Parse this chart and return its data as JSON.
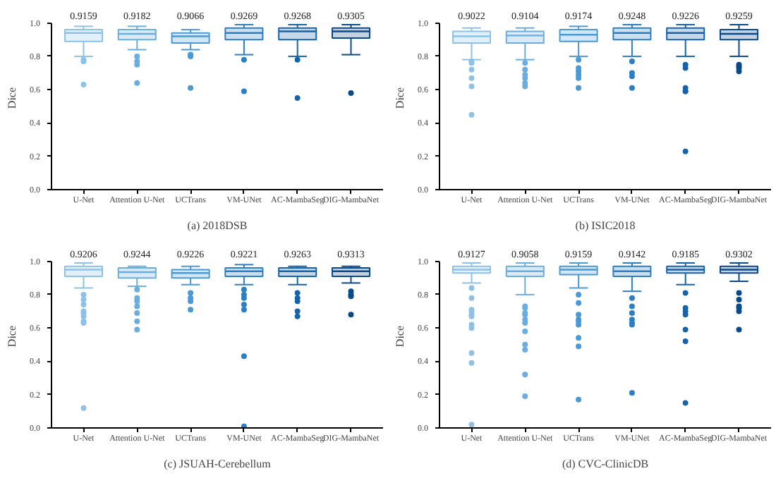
{
  "chart_data": [
    {
      "type": "box",
      "title": "(a) 2018DSB",
      "ylabel": "Dice",
      "categories": [
        "U-Net",
        "Attention U-Net",
        "UCTrans",
        "VM-UNet",
        "AC-MambaSeg",
        "DIG-MambaNet"
      ],
      "colors": [
        "#8cc2e8",
        "#6aaee0",
        "#4a9ad6",
        "#2c7fc4",
        "#1663aa",
        "#0b4a8a"
      ],
      "ylim": [
        0,
        1
      ],
      "yticks": [
        {
          "value": 0,
          "label": "0.0"
        },
        0.2,
        0.4,
        0.6,
        0.8,
        {
          "value": 1,
          "label": "1.0"
        }
      ],
      "grid": false,
      "boxes": [
        {
          "low": 0.8,
          "q1": 0.89,
          "median": 0.94,
          "q3": 0.96,
          "high": 0.98,
          "outliers": [
            0.78,
            0.77,
            0.63
          ]
        },
        {
          "low": 0.84,
          "q1": 0.9,
          "median": 0.935,
          "q3": 0.96,
          "high": 0.98,
          "outliers": [
            0.8,
            0.77,
            0.75,
            0.64
          ]
        },
        {
          "low": 0.84,
          "q1": 0.88,
          "median": 0.92,
          "q3": 0.94,
          "high": 0.96,
          "outliers": [
            0.81,
            0.8,
            0.61
          ]
        },
        {
          "low": 0.81,
          "q1": 0.9,
          "median": 0.94,
          "q3": 0.97,
          "high": 0.99,
          "outliers": [
            0.78,
            0.59
          ]
        },
        {
          "low": 0.8,
          "q1": 0.9,
          "median": 0.95,
          "q3": 0.97,
          "high": 0.99,
          "outliers": [
            0.78,
            0.55
          ]
        },
        {
          "low": 0.81,
          "q1": 0.91,
          "median": 0.95,
          "q3": 0.97,
          "high": 0.99,
          "outliers": [
            0.58
          ]
        }
      ],
      "annotations": [
        "0.9159",
        "0.9182",
        "0.9066",
        "0.9269",
        "0.9268",
        "0.9305"
      ]
    },
    {
      "type": "box",
      "title": "(b) ISIC2018",
      "ylabel": "Dice",
      "categories": [
        "U-Net",
        "Attention U-Net",
        "UCTrans",
        "VM-UNet",
        "AC-MambaSeg",
        "DIG-MambaNet"
      ],
      "colors": [
        "#8cc2e8",
        "#6aaee0",
        "#4a9ad6",
        "#2c7fc4",
        "#1663aa",
        "#0b4a8a"
      ],
      "ylim": [
        0,
        1
      ],
      "yticks": [
        {
          "value": 0,
          "label": "0.0"
        },
        0.2,
        0.4,
        0.6,
        0.8,
        {
          "value": 1,
          "label": "1.0"
        }
      ],
      "grid": false,
      "boxes": [
        {
          "low": 0.78,
          "q1": 0.88,
          "median": 0.92,
          "q3": 0.95,
          "high": 0.97,
          "outliers": [
            0.77,
            0.76,
            0.72,
            0.67,
            0.62,
            0.45
          ]
        },
        {
          "low": 0.78,
          "q1": 0.88,
          "median": 0.925,
          "q3": 0.95,
          "high": 0.97,
          "outliers": [
            0.76,
            0.72,
            0.69,
            0.67,
            0.64,
            0.62
          ]
        },
        {
          "low": 0.8,
          "q1": 0.89,
          "median": 0.93,
          "q3": 0.96,
          "high": 0.98,
          "outliers": [
            0.78,
            0.73,
            0.71,
            0.69,
            0.67,
            0.61
          ]
        },
        {
          "low": 0.8,
          "q1": 0.9,
          "median": 0.94,
          "q3": 0.97,
          "high": 0.99,
          "outliers": [
            0.77,
            0.7,
            0.68,
            0.61
          ]
        },
        {
          "low": 0.8,
          "q1": 0.9,
          "median": 0.94,
          "q3": 0.97,
          "high": 0.99,
          "outliers": [
            0.75,
            0.73,
            0.61,
            0.59,
            0.59,
            0.23
          ]
        },
        {
          "low": 0.8,
          "q1": 0.9,
          "median": 0.935,
          "q3": 0.96,
          "high": 0.99,
          "outliers": [
            0.75,
            0.74,
            0.73,
            0.71
          ]
        }
      ],
      "annotations": [
        "0.9022",
        "0.9104",
        "0.9174",
        "0.9248",
        "0.9226",
        "0.9259"
      ]
    },
    {
      "type": "box",
      "title": "(c) JSUAH-Cerebellum",
      "ylabel": "Dice",
      "categories": [
        "U-Net",
        "Attention U-Net",
        "UCTrans",
        "VM-UNet",
        "AC-MambaSeg",
        "DIG-MambaNet"
      ],
      "colors": [
        "#8cc2e8",
        "#6aaee0",
        "#4a9ad6",
        "#2c7fc4",
        "#1663aa",
        "#0b4a8a"
      ],
      "ylim": [
        0,
        1
      ],
      "yticks": [
        {
          "value": 0,
          "label": "0.0"
        },
        0.2,
        0.4,
        0.6,
        0.8,
        {
          "value": 1,
          "label": "1.0"
        }
      ],
      "grid": false,
      "boxes": [
        {
          "low": 0.84,
          "q1": 0.91,
          "median": 0.95,
          "q3": 0.97,
          "high": 0.99,
          "outliers": [
            0.8,
            0.77,
            0.74,
            0.7,
            0.69,
            0.67,
            0.64,
            0.63,
            0.12
          ]
        },
        {
          "low": 0.85,
          "q1": 0.9,
          "median": 0.935,
          "q3": 0.96,
          "high": 0.97,
          "outliers": [
            0.83,
            0.78,
            0.76,
            0.73,
            0.69,
            0.64,
            0.59
          ]
        },
        {
          "low": 0.86,
          "q1": 0.9,
          "median": 0.93,
          "q3": 0.95,
          "high": 0.97,
          "outliers": [
            0.81,
            0.78,
            0.76,
            0.71
          ]
        },
        {
          "low": 0.86,
          "q1": 0.91,
          "median": 0.94,
          "q3": 0.96,
          "high": 0.98,
          "outliers": [
            0.83,
            0.8,
            0.78,
            0.74,
            0.71,
            0.43,
            0.01
          ]
        },
        {
          "low": 0.86,
          "q1": 0.91,
          "median": 0.94,
          "q3": 0.96,
          "high": 0.97,
          "outliers": [
            0.81,
            0.78,
            0.76,
            0.7,
            0.67
          ]
        },
        {
          "low": 0.87,
          "q1": 0.91,
          "median": 0.94,
          "q3": 0.96,
          "high": 0.97,
          "outliers": [
            0.82,
            0.8,
            0.79,
            0.68
          ]
        }
      ],
      "annotations": [
        "0.9206",
        "0.9244",
        "0.9226",
        "0.9221",
        "0.9263",
        "0.9313"
      ]
    },
    {
      "type": "box",
      "title": "(d) CVC-ClinicDB",
      "ylabel": "Dice",
      "categories": [
        "U-Net",
        "Attention U-Net",
        "UCTrans",
        "VM-UNet",
        "AC-MambaSeg",
        "DIG-MambaNet"
      ],
      "colors": [
        "#8cc2e8",
        "#6aaee0",
        "#4a9ad6",
        "#2c7fc4",
        "#1663aa",
        "#0b4a8a"
      ],
      "ylim": [
        0,
        1
      ],
      "yticks": [
        {
          "value": 0,
          "label": "0.0"
        },
        0.2,
        0.4,
        0.6,
        0.8,
        {
          "value": 1,
          "label": "1.0"
        }
      ],
      "grid": false,
      "boxes": [
        {
          "low": 0.87,
          "q1": 0.93,
          "median": 0.95,
          "q3": 0.97,
          "high": 0.99,
          "outliers": [
            0.84,
            0.78,
            0.71,
            0.7,
            0.68,
            0.67,
            0.62,
            0.6,
            0.45,
            0.39,
            0.02
          ]
        },
        {
          "low": 0.8,
          "q1": 0.91,
          "median": 0.94,
          "q3": 0.97,
          "high": 0.99,
          "outliers": [
            0.73,
            0.72,
            0.69,
            0.68,
            0.65,
            0.63,
            0.58,
            0.5,
            0.47,
            0.32,
            0.19
          ]
        },
        {
          "low": 0.84,
          "q1": 0.92,
          "median": 0.95,
          "q3": 0.97,
          "high": 0.99,
          "outliers": [
            0.8,
            0.75,
            0.68,
            0.65,
            0.64,
            0.62,
            0.54,
            0.49,
            0.17
          ]
        },
        {
          "low": 0.82,
          "q1": 0.91,
          "median": 0.94,
          "q3": 0.97,
          "high": 0.99,
          "outliers": [
            0.78,
            0.73,
            0.69,
            0.65,
            0.63,
            0.62,
            0.21
          ]
        },
        {
          "low": 0.86,
          "q1": 0.93,
          "median": 0.95,
          "q3": 0.97,
          "high": 0.99,
          "outliers": [
            0.81,
            0.72,
            0.7,
            0.68,
            0.59,
            0.52,
            0.15
          ]
        },
        {
          "low": 0.88,
          "q1": 0.93,
          "median": 0.95,
          "q3": 0.97,
          "high": 0.99,
          "outliers": [
            0.81,
            0.77,
            0.73,
            0.72,
            0.7,
            0.59
          ]
        }
      ],
      "annotations": [
        "0.9127",
        "0.9058",
        "0.9159",
        "0.9142",
        "0.9185",
        "0.9302"
      ]
    }
  ]
}
